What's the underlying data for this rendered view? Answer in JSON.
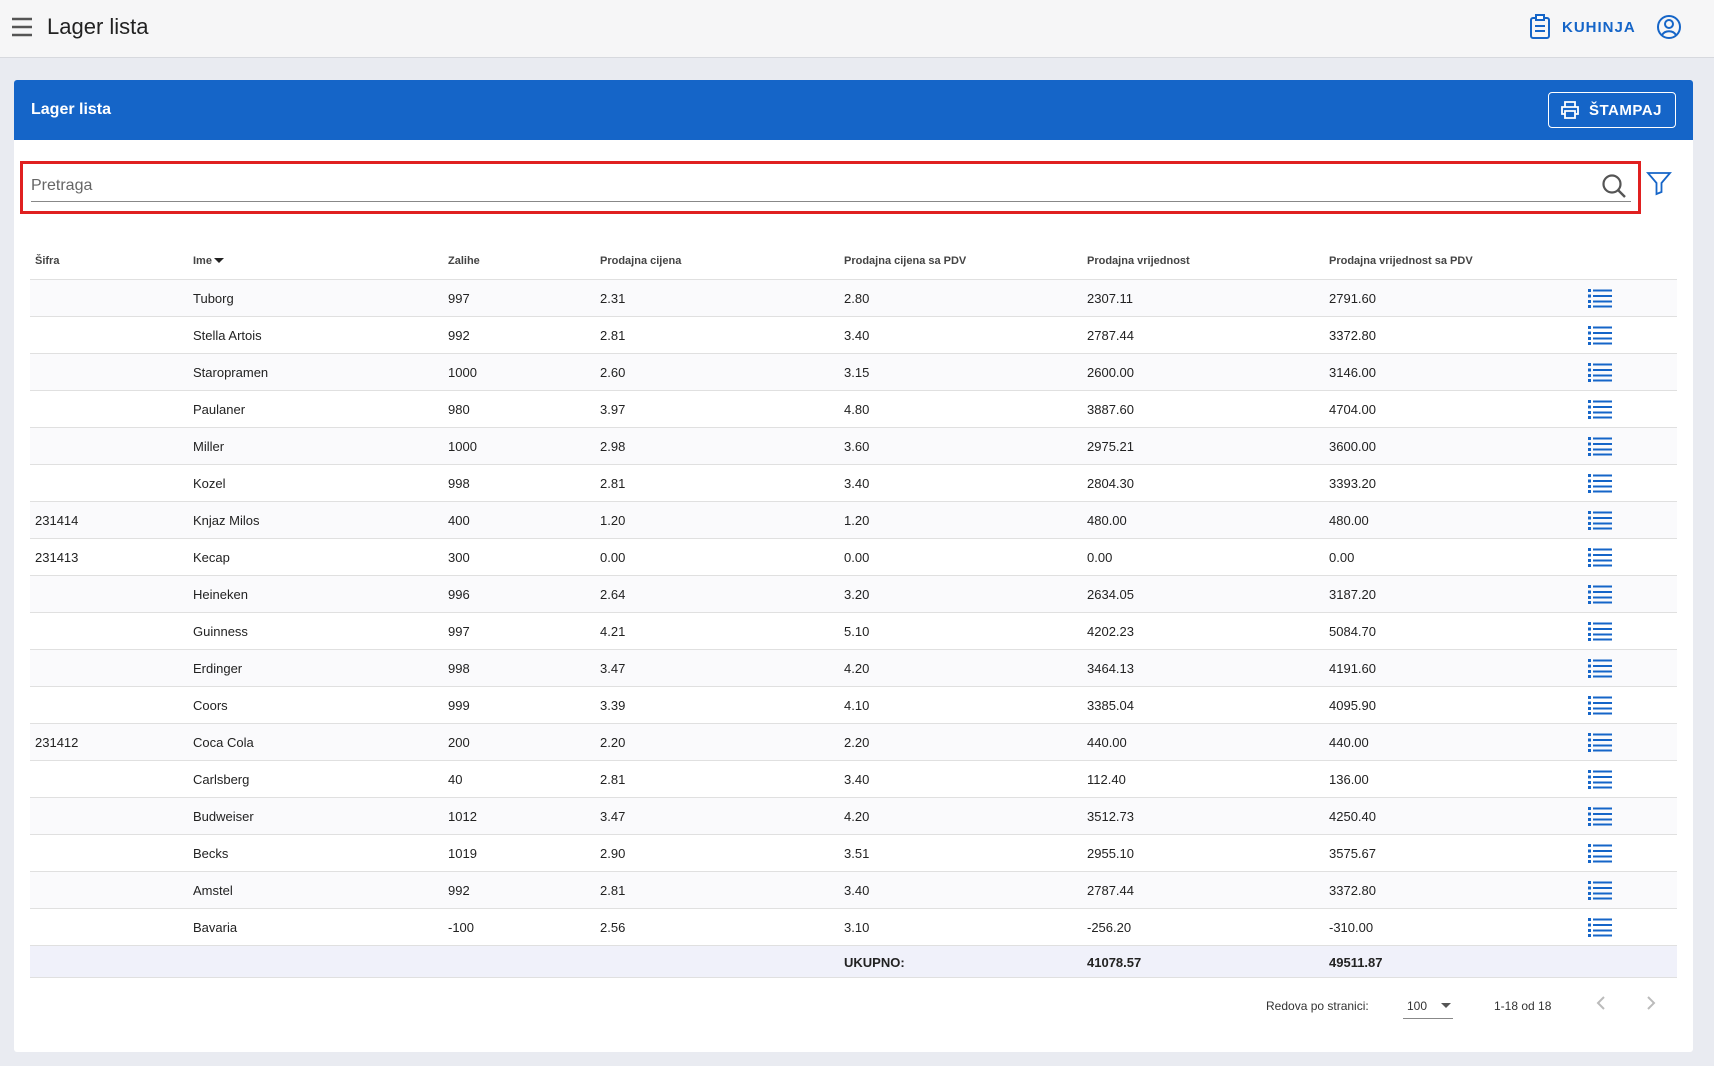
{
  "header": {
    "title": "Lager lista",
    "kitchen": "KUHINJA"
  },
  "card": {
    "title": "Lager lista",
    "print_button": "ŠTAMPAJ"
  },
  "search": {
    "placeholder": "Pretraga"
  },
  "table": {
    "columns": [
      "Šifra",
      "Ime",
      "Zalihe",
      "Prodajna cijena",
      "Prodajna cijena sa PDV",
      "Prodajna vrijednost",
      "Prodajna vrijednost sa PDV"
    ],
    "rows": [
      [
        null,
        "Tuborg",
        "997",
        "2.31",
        "2.80",
        "2307.11",
        "2791.60"
      ],
      [
        null,
        "Stella Artois",
        "992",
        "2.81",
        "3.40",
        "2787.44",
        "3372.80"
      ],
      [
        null,
        "Staropramen",
        "1000",
        "2.60",
        "3.15",
        "2600.00",
        "3146.00"
      ],
      [
        null,
        "Paulaner",
        "980",
        "3.97",
        "4.80",
        "3887.60",
        "4704.00"
      ],
      [
        null,
        "Miller",
        "1000",
        "2.98",
        "3.60",
        "2975.21",
        "3600.00"
      ],
      [
        null,
        "Kozel",
        "998",
        "2.81",
        "3.40",
        "2804.30",
        "3393.20"
      ],
      [
        "231414",
        "Knjaz Milos",
        "400",
        "1.20",
        "1.20",
        "480.00",
        "480.00"
      ],
      [
        "231413",
        "Kecap",
        "300",
        "0.00",
        "0.00",
        "0.00",
        "0.00"
      ],
      [
        null,
        "Heineken",
        "996",
        "2.64",
        "3.20",
        "2634.05",
        "3187.20"
      ],
      [
        null,
        "Guinness",
        "997",
        "4.21",
        "5.10",
        "4202.23",
        "5084.70"
      ],
      [
        null,
        "Erdinger",
        "998",
        "3.47",
        "4.20",
        "3464.13",
        "4191.60"
      ],
      [
        null,
        "Coors",
        "999",
        "3.39",
        "4.10",
        "3385.04",
        "4095.90"
      ],
      [
        "231412",
        "Coca Cola",
        "200",
        "2.20",
        "2.20",
        "440.00",
        "440.00"
      ],
      [
        null,
        "Carlsberg",
        "40",
        "2.81",
        "3.40",
        "112.40",
        "136.00"
      ],
      [
        null,
        "Budweiser",
        "1012",
        "3.47",
        "4.20",
        "3512.73",
        "4250.40"
      ],
      [
        null,
        "Becks",
        "1019",
        "2.90",
        "3.51",
        "2955.10",
        "3575.67"
      ],
      [
        null,
        "Amstel",
        "992",
        "2.81",
        "3.40",
        "2787.44",
        "3372.80"
      ],
      [
        null,
        "Bavaria",
        "-100",
        "2.56",
        "3.10",
        "-256.20",
        "-310.00"
      ]
    ],
    "total": {
      "label": "UKUPNO:",
      "value": "41078.57",
      "value_pdv": "49511.87"
    }
  },
  "pagination": {
    "rows_per_page_label": "Redova po stranici:",
    "rows_per_page": "100",
    "range": "1-18 od 18"
  }
}
